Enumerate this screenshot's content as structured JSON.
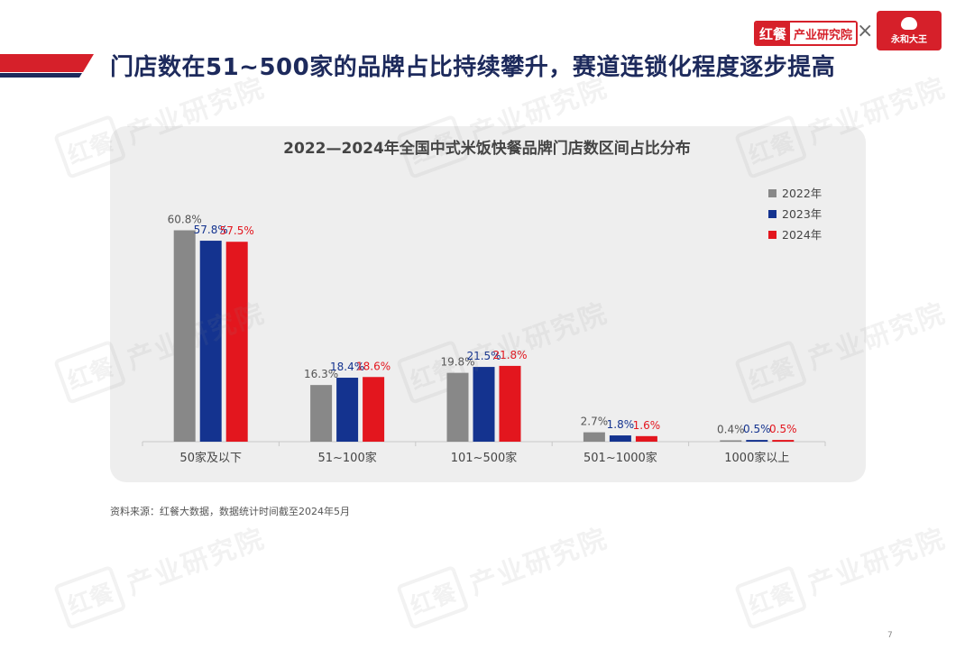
{
  "header": {
    "title": "门店数在51~500家的品牌占比持续攀升，赛道连锁化程度逐步提高",
    "brand_logo": {
      "part1": "红餐",
      "part2": "产业研究院"
    },
    "times_sign": "×",
    "partner_logo": {
      "text": "永和大王"
    }
  },
  "watermark": {
    "mark": "红餐",
    "text": "产业研究院"
  },
  "colors": {
    "accent_red": "#d6202a",
    "accent_navy": "#1d2a5c",
    "series_2022": "#888888",
    "series_2023": "#14338f",
    "series_2024": "#e3161e"
  },
  "chart_data": {
    "type": "bar",
    "title": "2022—2024年全国中式米饭快餐品牌门店数区间占比分布",
    "categories": [
      "50家及以下",
      "51~100家",
      "101~500家",
      "501~1000家",
      "1000家以上"
    ],
    "series": [
      {
        "name": "2022年",
        "color": "#888888",
        "values": [
          60.8,
          16.3,
          19.8,
          2.7,
          0.4
        ],
        "labels": [
          "60.8%",
          "16.3%",
          "19.8%",
          "2.7%",
          "0.4%"
        ]
      },
      {
        "name": "2023年",
        "color": "#14338f",
        "values": [
          57.8,
          18.4,
          21.5,
          1.8,
          0.5
        ],
        "labels": [
          "57.8%",
          "18.4%",
          "21.5%",
          "1.8%",
          "0.5%"
        ]
      },
      {
        "name": "2024年",
        "color": "#e3161e",
        "values": [
          57.5,
          18.6,
          21.8,
          1.6,
          0.5
        ],
        "labels": [
          "57.5%",
          "18.6%",
          "21.8%",
          "1.6%",
          "0.5%"
        ]
      }
    ],
    "legend_position": "top-right",
    "grid": false,
    "ylim": [
      0,
      70
    ]
  },
  "footer": {
    "source": "资料来源：红餐大数据，数据统计时间截至2024年5月",
    "page_number": "7"
  }
}
